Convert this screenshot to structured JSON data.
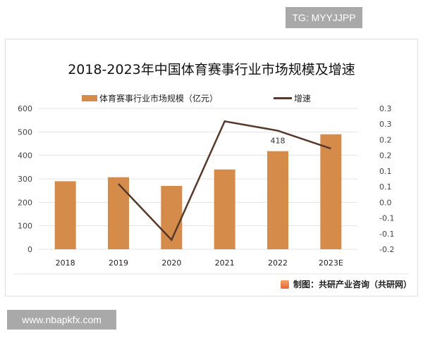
{
  "badge_top": "TG: MYYJJPP",
  "badge_bottom": "www.nbapkfx.com",
  "footer": {
    "source": "制图：共研产业咨询（共研网）",
    "logo_icon": "gongyan-logo-icon"
  },
  "chart_data": {
    "type": "bar+line",
    "title": "2018-2023年中国体育赛事行业市场规模及增速",
    "categories": [
      "2018",
      "2019",
      "2020",
      "2021",
      "2022",
      "2023E"
    ],
    "series": [
      {
        "name": "体育赛事行业市场规模（亿元）",
        "type": "bar",
        "axis": "left",
        "color": "#d58c4b",
        "values": [
          290,
          307,
          270,
          340,
          418,
          490
        ]
      },
      {
        "name": "增速",
        "type": "line",
        "axis": "right",
        "color": "#56392a",
        "values": [
          null,
          0.059,
          -0.12,
          0.259,
          0.229,
          0.172
        ]
      }
    ],
    "data_labels": [
      {
        "category": "2022",
        "text": "418"
      }
    ],
    "left_axis": {
      "ylim": [
        0,
        600
      ],
      "ticks": [
        "0",
        "100",
        "200",
        "300",
        "400",
        "500",
        "600"
      ]
    },
    "right_axis": {
      "ylim": [
        -0.15,
        0.3
      ],
      "ticks": [
        "-0.2",
        "-0.1",
        "-0.1",
        "0.0",
        "0.1",
        "0.1",
        "0.2",
        "0.2",
        "0.3",
        "0.3"
      ]
    },
    "grid": true,
    "legend": "top"
  }
}
